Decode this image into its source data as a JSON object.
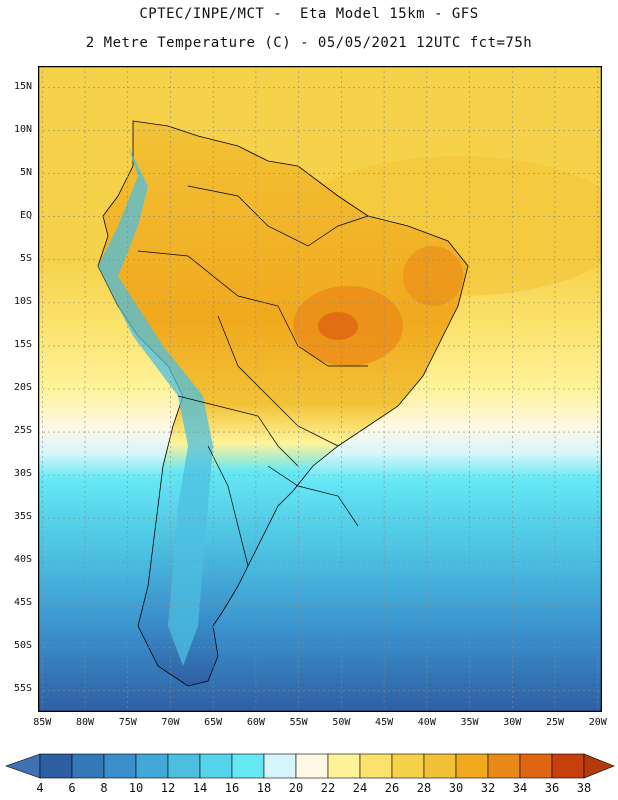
{
  "header": {
    "title_line1": "CPTEC/INPE/MCT -  Eta Model 15km - GFS",
    "title_line2": "2 Metre Temperature (C) - 05/05/2021 12UTC fct=75h"
  },
  "map": {
    "lat_labels": [
      "15N",
      "10N",
      "5N",
      "EQ",
      "5S",
      "10S",
      "15S",
      "20S",
      "25S",
      "30S",
      "35S",
      "40S",
      "45S",
      "50S",
      "55S"
    ],
    "lat_values": [
      15,
      10,
      5,
      0,
      -5,
      -10,
      -15,
      -20,
      -25,
      -30,
      -35,
      -40,
      -45,
      -50,
      -55
    ],
    "lon_labels": [
      "85W",
      "80W",
      "75W",
      "70W",
      "65W",
      "60W",
      "55W",
      "50W",
      "45W",
      "40W",
      "35W",
      "30W",
      "25W",
      "20W"
    ],
    "lon_values": [
      -85,
      -80,
      -75,
      -70,
      -65,
      -60,
      -55,
      -50,
      -45,
      -40,
      -35,
      -30,
      -25,
      -20
    ],
    "extent": {
      "lon_min": -85.5,
      "lon_max": -19.5,
      "lat_min": -57.5,
      "lat_max": 17.5
    }
  },
  "colorbar": {
    "labels": [
      "4",
      "6",
      "8",
      "10",
      "12",
      "14",
      "16",
      "18",
      "20",
      "22",
      "24",
      "26",
      "28",
      "30",
      "32",
      "34",
      "36",
      "38"
    ],
    "colors": [
      "#2e5fa3",
      "#3478b8",
      "#3a8fcb",
      "#42a8d8",
      "#4cbfe0",
      "#55d3ea",
      "#66e8f4",
      "#d6f6fb",
      "#fff8e6",
      "#fff39a",
      "#fbe26c",
      "#f6d24a",
      "#f2c236",
      "#f1a91e",
      "#e98a18",
      "#de6512",
      "#c63f0c"
    ],
    "under_color": "#3e72b4",
    "over_color": "#b33a0a"
  }
}
